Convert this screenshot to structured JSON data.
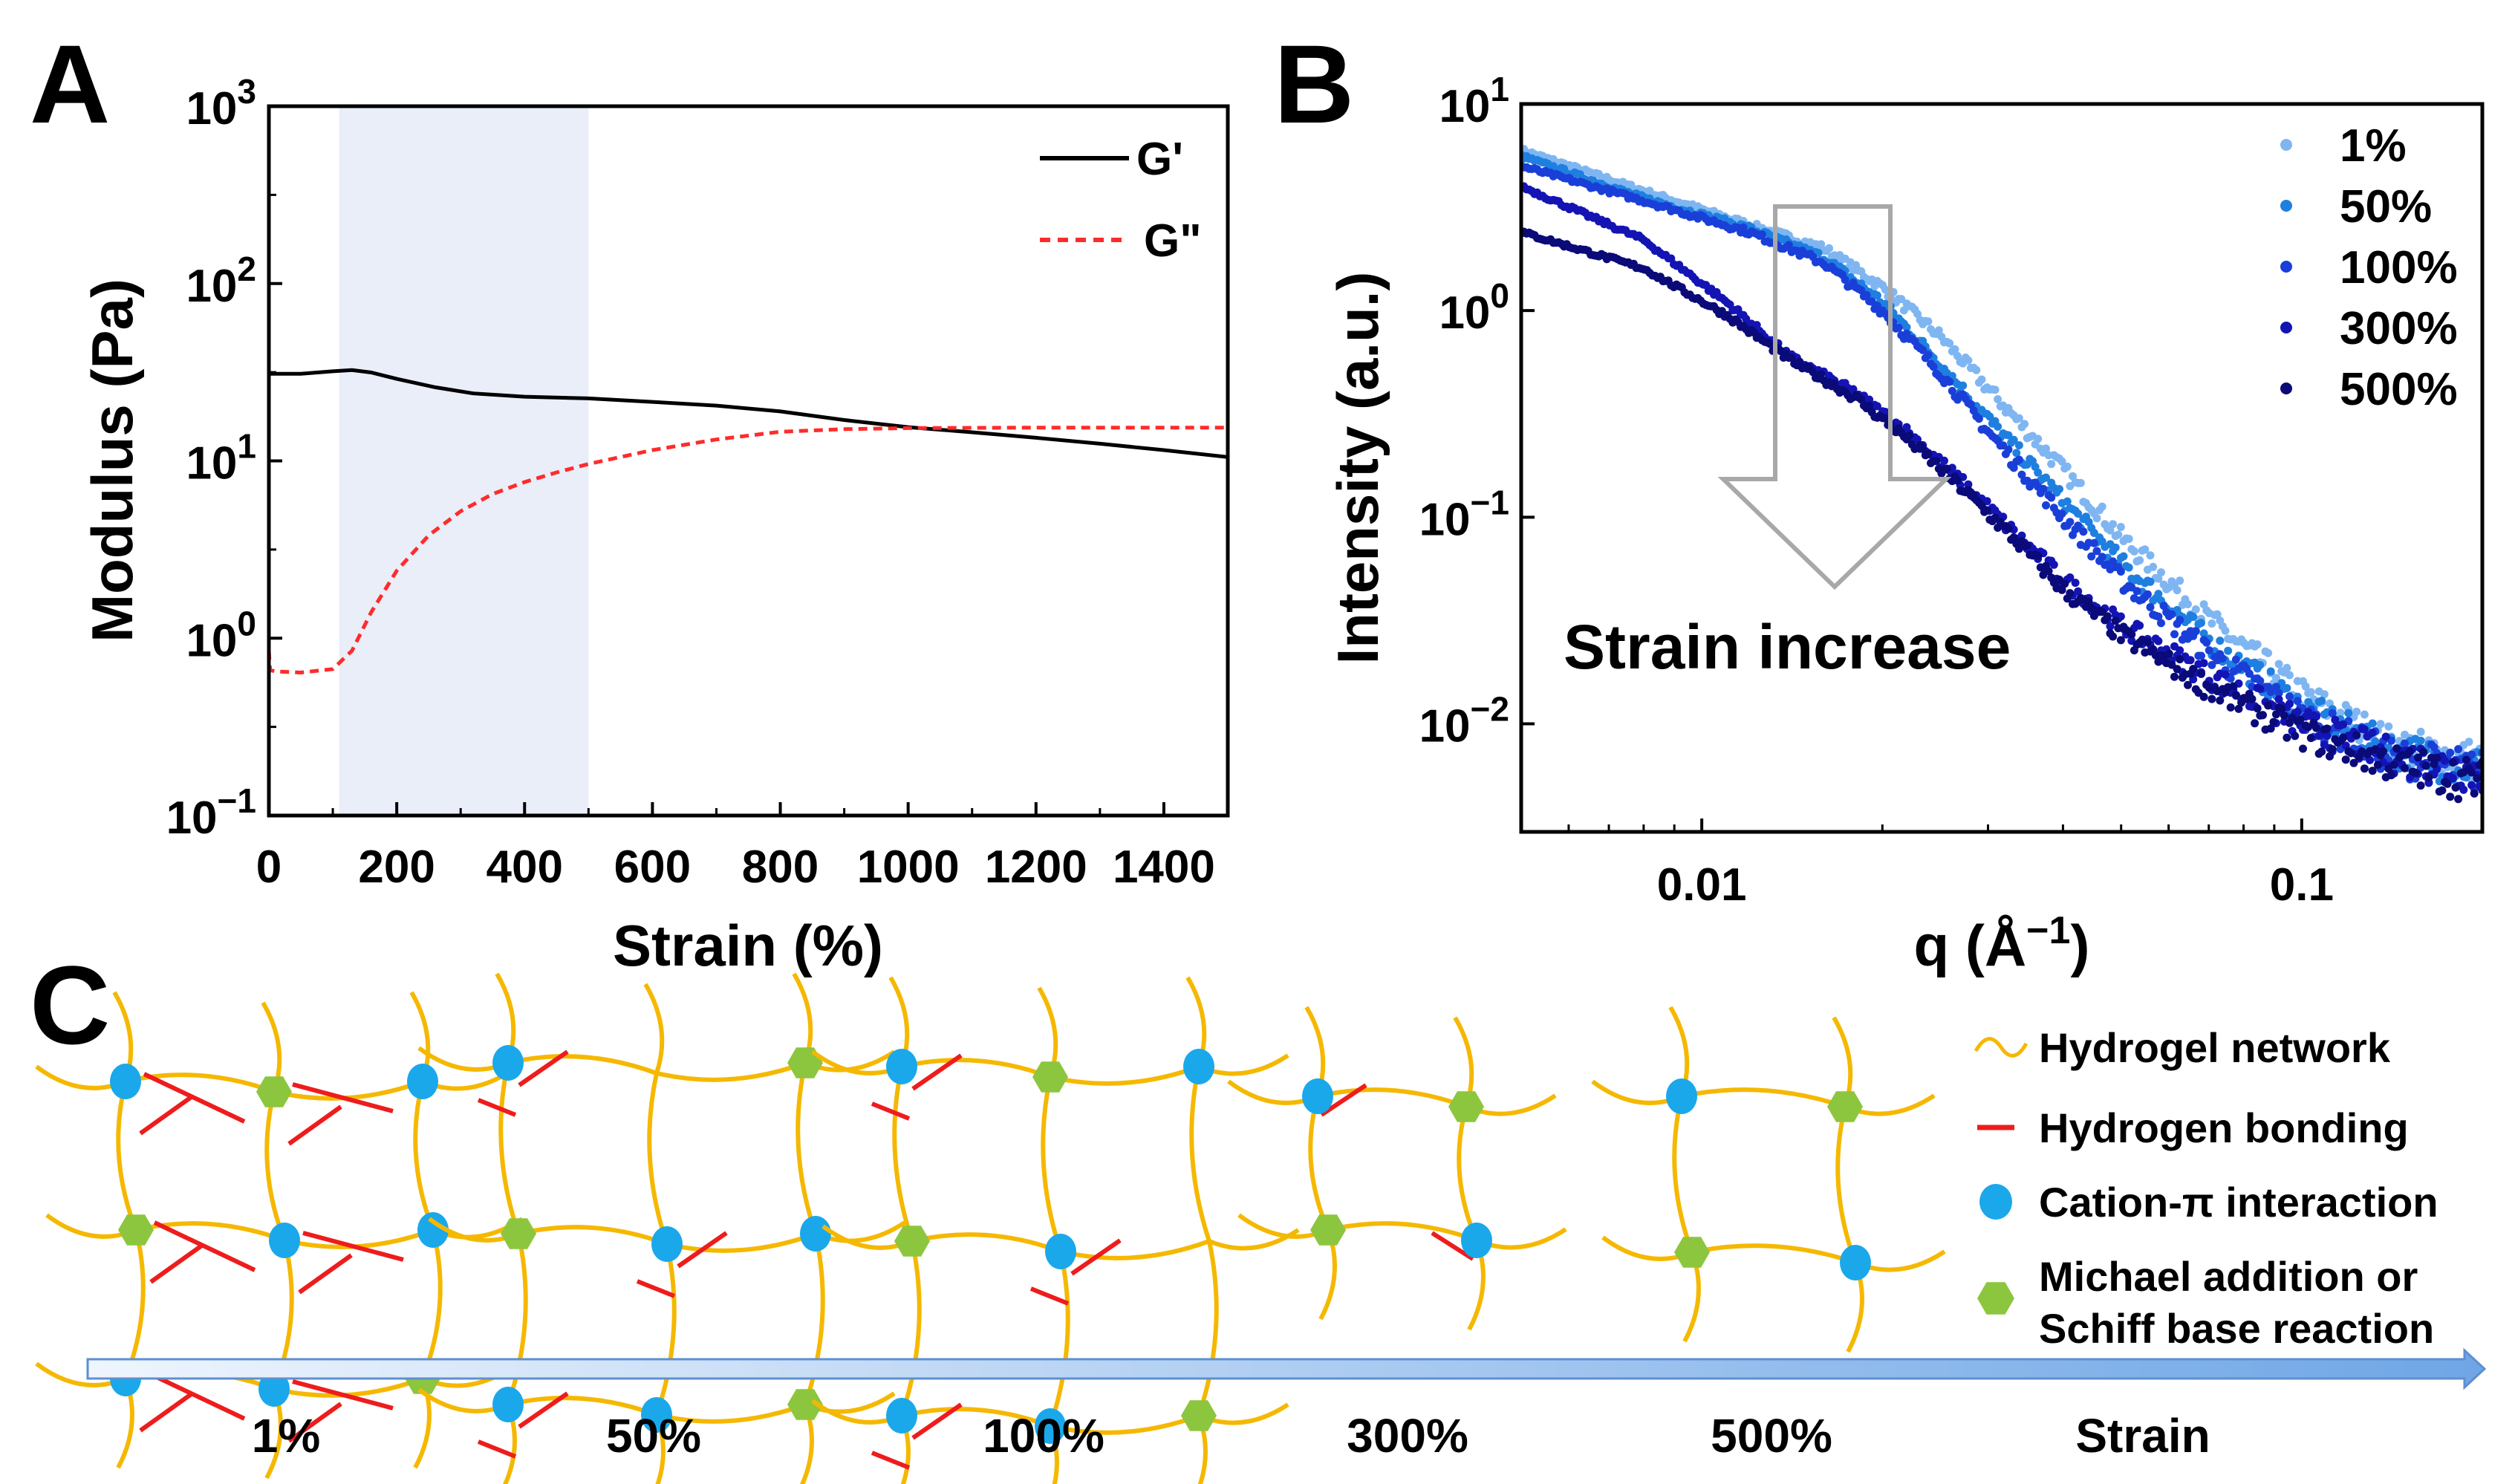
{
  "panels": {
    "a": "A",
    "b": "B",
    "c": "C"
  },
  "chart_data": [
    {
      "type": "line",
      "panel": "A",
      "xlabel": "Strain (%)",
      "ylabel": "Modulus (Pa)",
      "xlim": [
        0,
        1500
      ],
      "ylim": [
        0.1,
        1000
      ],
      "yscale": "log",
      "xticks": [
        "0",
        "200",
        "400",
        "600",
        "800",
        "1000",
        "1200",
        "1400"
      ],
      "yticks": [
        {
          "base": "10",
          "exp": "3"
        },
        {
          "base": "10",
          "exp": "2"
        },
        {
          "base": "10",
          "exp": "1"
        },
        {
          "base": "10",
          "exp": "0"
        },
        {
          "base": "10",
          "exp": "−1"
        }
      ],
      "shaded_region": [
        110,
        500
      ],
      "legend_position": "top-right",
      "series": [
        {
          "name": "G'",
          "color": "#000000",
          "style": "solid",
          "x": [
            0,
            50,
            100,
            130,
            160,
            200,
            260,
            320,
            400,
            500,
            600,
            700,
            800,
            900,
            1000,
            1100,
            1200,
            1300,
            1400,
            1500
          ],
          "y": [
            31,
            31,
            32,
            32.5,
            31.5,
            29,
            26,
            24,
            23,
            22.5,
            21.5,
            20.5,
            19,
            17,
            15.5,
            14.5,
            13.5,
            12.5,
            11.5,
            10.5
          ]
        },
        {
          "name": "G\"",
          "color": "#ff2b2b",
          "style": "dashed",
          "x": [
            0,
            2,
            10,
            50,
            100,
            130,
            160,
            200,
            250,
            300,
            350,
            400,
            450,
            500,
            600,
            700,
            800,
            900,
            1000,
            1200,
            1400,
            1500
          ],
          "y": [
            0.85,
            0.66,
            0.65,
            0.64,
            0.67,
            0.85,
            1.4,
            2.4,
            3.8,
            5.2,
            6.5,
            7.6,
            8.6,
            9.6,
            11.5,
            13.2,
            14.6,
            15.1,
            15.3,
            15.4,
            15.4,
            15.4
          ]
        }
      ]
    },
    {
      "type": "scatter",
      "panel": "B",
      "xlabel_main": "q (Å",
      "xlabel_exp": "−1",
      "xlabel_close": ")",
      "ylabel": "Intensity (a.u.)",
      "xscale": "log",
      "yscale": "log",
      "xlim": [
        0.005,
        0.2
      ],
      "ylim": [
        0.003,
        10
      ],
      "xticks": [
        "0.01",
        "0.1"
      ],
      "yticks": [
        {
          "base": "10",
          "exp": "1"
        },
        {
          "base": "10",
          "exp": "0"
        },
        {
          "base": "10",
          "exp": "−1"
        },
        {
          "base": "10",
          "exp": "−2"
        }
      ],
      "legend_position": "top-right",
      "annotation": "Strain increase",
      "series": [
        {
          "name": "1%",
          "color": "#7fb6f2",
          "q": [
            0.005,
            0.008,
            0.012,
            0.016,
            0.02,
            0.025,
            0.03,
            0.04,
            0.05,
            0.07,
            0.1,
            0.14,
            0.2
          ],
          "I": [
            6.0,
            3.8,
            2.6,
            2.0,
            1.3,
            0.75,
            0.42,
            0.17,
            0.08,
            0.032,
            0.014,
            0.008,
            0.0065
          ]
        },
        {
          "name": "50%",
          "color": "#1f7fe0",
          "q": [
            0.005,
            0.008,
            0.012,
            0.016,
            0.02,
            0.025,
            0.03,
            0.04,
            0.05,
            0.07,
            0.1,
            0.14,
            0.2
          ],
          "I": [
            5.6,
            3.5,
            2.5,
            1.8,
            1.1,
            0.55,
            0.3,
            0.12,
            0.06,
            0.025,
            0.012,
            0.0075,
            0.006
          ]
        },
        {
          "name": "100%",
          "color": "#1a3fd8",
          "q": [
            0.005,
            0.008,
            0.012,
            0.016,
            0.02,
            0.025,
            0.03,
            0.04,
            0.05,
            0.07,
            0.1,
            0.14,
            0.2
          ],
          "I": [
            5.0,
            3.4,
            2.4,
            1.7,
            1.0,
            0.5,
            0.26,
            0.1,
            0.05,
            0.022,
            0.011,
            0.007,
            0.0058
          ]
        },
        {
          "name": "300%",
          "color": "#1414b4",
          "q": [
            0.005,
            0.008,
            0.011,
            0.014,
            0.018,
            0.022,
            0.027,
            0.033,
            0.04,
            0.05,
            0.07,
            0.1,
            0.14,
            0.2
          ],
          "I": [
            4.0,
            2.2,
            1.1,
            0.6,
            0.4,
            0.26,
            0.15,
            0.085,
            0.05,
            0.03,
            0.017,
            0.01,
            0.007,
            0.0058
          ]
        },
        {
          "name": "500%",
          "color": "#0a0a78",
          "q": [
            0.005,
            0.008,
            0.011,
            0.014,
            0.018,
            0.022,
            0.027,
            0.033,
            0.04,
            0.05,
            0.07,
            0.1,
            0.14,
            0.2
          ],
          "I": [
            2.4,
            1.6,
            0.95,
            0.58,
            0.38,
            0.24,
            0.14,
            0.08,
            0.045,
            0.027,
            0.015,
            0.009,
            0.0065,
            0.0052
          ]
        }
      ]
    }
  ],
  "schematic": {
    "legend": [
      {
        "text": "Hydrogel network"
      },
      {
        "text": "Hydrogen bonding"
      },
      {
        "text": "Cation-π interaction"
      },
      {
        "text": "Michael addition or",
        "text2": "Schiff base reaction"
      }
    ],
    "strain_labels": [
      "1%",
      "50%",
      "100%",
      "300%",
      "500%"
    ],
    "arrow_label": "Strain",
    "colors": {
      "network": "#f5b800",
      "hbond": "#ee1c1c",
      "cation": "#1aa8ea",
      "michael": "#8cc63f"
    }
  }
}
